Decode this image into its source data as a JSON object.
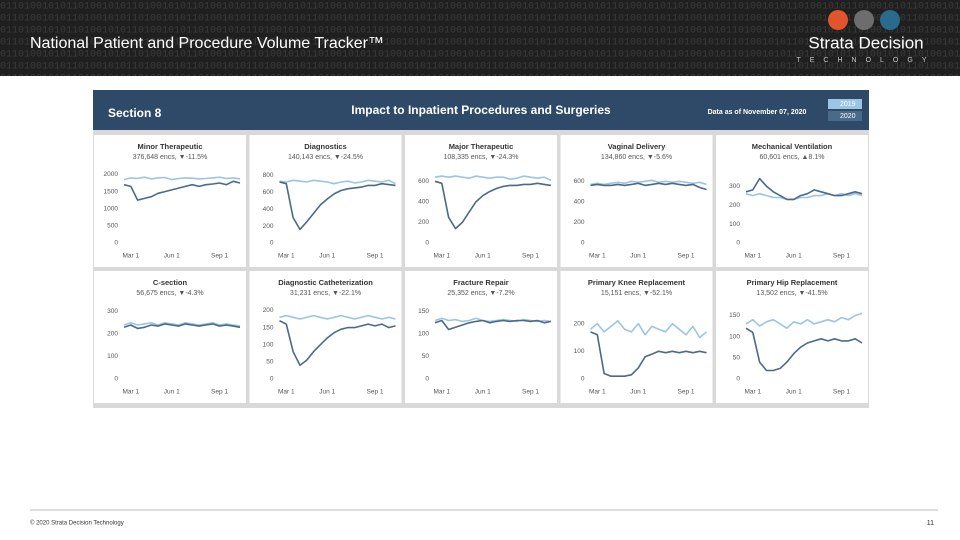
{
  "header": {
    "title": "National Patient and Procedure Volume Tracker™",
    "logo": "Strata Decision",
    "logo_sub": "TECHNOLOGY"
  },
  "dashboard": {
    "section": "Section 8",
    "title": "Impact to Inpatient Procedures and Surgeries",
    "date": "Data as of November 07, 2020",
    "legend": [
      {
        "name": "2019",
        "color": "#9cc4e4"
      },
      {
        "name": "2020",
        "color": "#4b6a89"
      }
    ]
  },
  "footer": {
    "copyright": "© 2020 Strata Decision Technology",
    "page": "11"
  },
  "chart_data": [
    {
      "type": "line",
      "title": "Minor Therapeutic",
      "subtitle": "376,648 encs, ▼-11.5%",
      "categories": [
        null,
        "Mar 1",
        null,
        null,
        null,
        null,
        null,
        "Jun 1",
        null,
        null,
        null,
        null,
        null,
        null,
        "Sep 1",
        null,
        null,
        null
      ],
      "series": [
        {
          "values": [
            1850,
            1900,
            1880,
            1920,
            1870,
            1900,
            1910,
            1850,
            1880,
            1900,
            1890,
            1870,
            1880,
            1900,
            1920,
            1880,
            1900,
            1870
          ]
        },
        {
          "values": [
            1700,
            1650,
            1250,
            1300,
            1350,
            1450,
            1500,
            1550,
            1600,
            1650,
            1700,
            1650,
            1700,
            1720,
            1750,
            1700,
            1800,
            1750
          ]
        }
      ],
      "ylim": [
        0,
        2100
      ],
      "yticks": [
        0,
        500,
        1000,
        1500,
        2000
      ]
    },
    {
      "type": "line",
      "title": "Diagnostics",
      "subtitle": "140,143 encs, ▼-24.5%",
      "categories": [
        null,
        "Mar 1",
        null,
        null,
        null,
        null,
        null,
        "Jun 1",
        null,
        null,
        null,
        null,
        null,
        null,
        "Sep 1",
        null,
        null,
        null
      ],
      "series": [
        {
          "values": [
            730,
            720,
            740,
            730,
            720,
            740,
            730,
            720,
            700,
            720,
            730,
            710,
            720,
            740,
            730,
            720,
            740,
            700
          ]
        },
        {
          "values": [
            720,
            700,
            300,
            160,
            250,
            350,
            450,
            520,
            580,
            620,
            640,
            650,
            660,
            680,
            680,
            700,
            690,
            680
          ]
        }
      ],
      "ylim": [
        0,
        850
      ],
      "yticks": [
        0,
        200,
        400,
        600,
        800
      ]
    },
    {
      "type": "line",
      "title": "Major Therapeutic",
      "subtitle": "108,335 encs, ▼-24.3%",
      "categories": [
        null,
        "Mar 1",
        null,
        null,
        null,
        null,
        null,
        "Jun 1",
        null,
        null,
        null,
        null,
        null,
        null,
        "Sep 1",
        null,
        null,
        null
      ],
      "series": [
        {
          "values": [
            640,
            650,
            640,
            650,
            640,
            630,
            650,
            640,
            630,
            640,
            640,
            620,
            630,
            650,
            640,
            630,
            640,
            610
          ]
        },
        {
          "values": [
            600,
            580,
            250,
            140,
            200,
            300,
            400,
            460,
            500,
            530,
            550,
            560,
            560,
            570,
            570,
            580,
            570,
            560
          ]
        }
      ],
      "ylim": [
        0,
        700
      ],
      "yticks": [
        0,
        200,
        400,
        600
      ]
    },
    {
      "type": "line",
      "title": "Vaginal Delivery",
      "subtitle": "134,860 encs, ▼-5.6%",
      "categories": [
        null,
        "Mar 1",
        null,
        null,
        null,
        null,
        null,
        "Jun 1",
        null,
        null,
        null,
        null,
        null,
        null,
        "Sep 1",
        null,
        null,
        null
      ],
      "series": [
        {
          "values": [
            570,
            580,
            570,
            580,
            590,
            580,
            600,
            590,
            600,
            610,
            590,
            600,
            590,
            600,
            590,
            580,
            590,
            570
          ]
        },
        {
          "values": [
            560,
            570,
            560,
            560,
            570,
            560,
            570,
            580,
            560,
            570,
            580,
            570,
            580,
            570,
            560,
            570,
            540,
            520
          ]
        }
      ],
      "ylim": [
        0,
        700
      ],
      "yticks": [
        0,
        200,
        400,
        600
      ]
    },
    {
      "type": "line",
      "title": "Mechanical Ventilation",
      "subtitle": "60,601 encs, ▲8.1%",
      "categories": [
        null,
        "Mar 1",
        null,
        null,
        null,
        null,
        null,
        "Jun 1",
        null,
        null,
        null,
        null,
        null,
        null,
        "Sep 1",
        null,
        null,
        null
      ],
      "series": [
        {
          "values": [
            260,
            250,
            260,
            250,
            240,
            240,
            230,
            230,
            240,
            240,
            250,
            250,
            260,
            250,
            260,
            250,
            260,
            250
          ]
        },
        {
          "values": [
            270,
            280,
            340,
            300,
            270,
            250,
            230,
            230,
            250,
            260,
            280,
            270,
            260,
            250,
            250,
            260,
            270,
            260
          ]
        }
      ],
      "ylim": [
        0,
        380
      ],
      "yticks": [
        0,
        100,
        200,
        300
      ]
    },
    {
      "type": "line",
      "title": "C-section",
      "subtitle": "56,675 encs, ▼-4.3%",
      "categories": [
        null,
        "Mar 1",
        null,
        null,
        null,
        null,
        null,
        "Jun 1",
        null,
        null,
        null,
        null,
        null,
        null,
        "Sep 1",
        null,
        null,
        null
      ],
      "series": [
        {
          "values": [
            240,
            250,
            240,
            245,
            250,
            240,
            250,
            245,
            240,
            250,
            245,
            240,
            245,
            250,
            240,
            245,
            240,
            235
          ]
        },
        {
          "values": [
            230,
            240,
            225,
            230,
            240,
            235,
            245,
            240,
            235,
            245,
            240,
            235,
            240,
            245,
            235,
            240,
            235,
            230
          ]
        }
      ],
      "ylim": [
        0,
        320
      ],
      "yticks": [
        0,
        100,
        200,
        300
      ]
    },
    {
      "type": "line",
      "title": "Diagnostic Catheterization",
      "subtitle": "31,231 encs, ▼-22.1%",
      "categories": [
        null,
        "Mar 1",
        null,
        null,
        null,
        null,
        null,
        "Jun 1",
        null,
        null,
        null,
        null,
        null,
        null,
        "Sep 1",
        null,
        null,
        null
      ],
      "series": [
        {
          "values": [
            180,
            185,
            180,
            175,
            180,
            185,
            180,
            175,
            180,
            185,
            180,
            175,
            180,
            185,
            180,
            175,
            180,
            175
          ]
        },
        {
          "values": [
            170,
            160,
            80,
            40,
            55,
            80,
            100,
            120,
            135,
            145,
            150,
            150,
            155,
            160,
            155,
            160,
            150,
            155
          ]
        }
      ],
      "ylim": [
        0,
        210
      ],
      "yticks": [
        0,
        50,
        100,
        150,
        200
      ]
    },
    {
      "type": "line",
      "title": "Fracture Repair",
      "subtitle": "25,352 encs, ▼-7.2%",
      "categories": [
        null,
        "Mar 1",
        null,
        null,
        null,
        null,
        null,
        "Jun 1",
        null,
        null,
        null,
        null,
        null,
        null,
        "Sep 1",
        null,
        null,
        null
      ],
      "series": [
        {
          "values": [
            130,
            135,
            130,
            132,
            128,
            130,
            135,
            130,
            128,
            130,
            132,
            130,
            128,
            132,
            130,
            128,
            130,
            128
          ]
        },
        {
          "values": [
            125,
            130,
            110,
            115,
            120,
            125,
            128,
            130,
            125,
            128,
            130,
            128,
            130,
            130,
            128,
            130,
            125,
            128
          ]
        }
      ],
      "ylim": [
        0,
        160
      ],
      "yticks": [
        0,
        50,
        100,
        150
      ]
    },
    {
      "type": "line",
      "title": "Primary Knee Replacement",
      "subtitle": "15,151 encs, ▼-52.1%",
      "categories": [
        null,
        "Mar 1",
        null,
        null,
        null,
        null,
        null,
        "Jun 1",
        null,
        null,
        null,
        null,
        null,
        null,
        "Sep 1",
        null,
        null,
        null
      ],
      "series": [
        {
          "values": [
            180,
            200,
            170,
            190,
            210,
            180,
            170,
            200,
            160,
            190,
            180,
            170,
            200,
            180,
            160,
            190,
            150,
            170
          ]
        },
        {
          "values": [
            170,
            160,
            20,
            10,
            10,
            10,
            15,
            40,
            80,
            90,
            100,
            95,
            100,
            95,
            100,
            95,
            100,
            95
          ]
        }
      ],
      "ylim": [
        0,
        260
      ],
      "yticks": [
        0,
        100,
        200
      ]
    },
    {
      "type": "line",
      "title": "Primary Hip Replacement",
      "subtitle": "13,502 encs, ▼-41.5%",
      "categories": [
        null,
        "Mar 1",
        null,
        null,
        null,
        null,
        null,
        "Jun 1",
        null,
        null,
        null,
        null,
        null,
        null,
        "Sep 1",
        null,
        null,
        null
      ],
      "series": [
        {
          "values": [
            130,
            140,
            125,
            135,
            140,
            130,
            120,
            135,
            130,
            140,
            130,
            135,
            140,
            135,
            145,
            140,
            150,
            155
          ]
        },
        {
          "values": [
            120,
            110,
            40,
            20,
            20,
            25,
            40,
            60,
            75,
            85,
            90,
            95,
            90,
            95,
            90,
            90,
            95,
            85
          ]
        }
      ],
      "ylim": [
        0,
        170
      ],
      "yticks": [
        0,
        50,
        100,
        150
      ]
    }
  ]
}
